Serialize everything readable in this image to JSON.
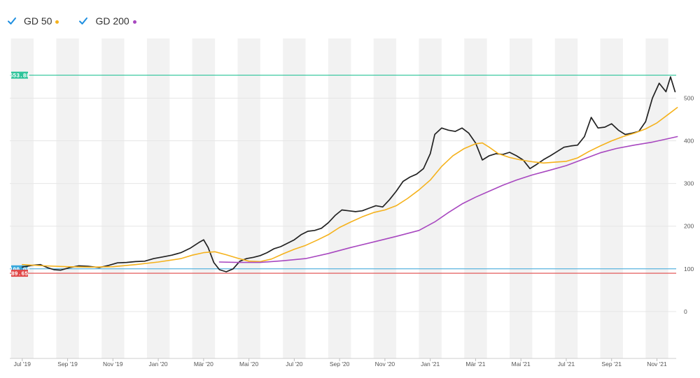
{
  "legend": [
    {
      "label": "GD 50",
      "color": "#f5b21c",
      "checked": true
    },
    {
      "label": "GD 200",
      "color": "#a848c0",
      "checked": true
    }
  ],
  "colors": {
    "price": "#222222",
    "gd50": "#f5b21c",
    "gd200": "#a848c0",
    "high_line": "#2ec49a",
    "mid_line": "#38a8dc",
    "low_line": "#e04848",
    "band": "#f2f2f2",
    "grid": "#e6e6e6"
  },
  "chart_data": {
    "type": "line",
    "x_unit": "month (Jul '19 = 0)",
    "xlim": [
      -0.55,
      28.85
    ],
    "ylim": [
      -110,
      640
    ],
    "y_ticks": [
      0,
      100,
      200,
      300,
      400,
      500
    ],
    "x_ticks": [
      {
        "x": 0,
        "label": "Jul '19"
      },
      {
        "x": 2,
        "label": "Sep '19"
      },
      {
        "x": 4,
        "label": "Nov '19"
      },
      {
        "x": 6,
        "label": "Jan '20"
      },
      {
        "x": 8,
        "label": "Mär '20"
      },
      {
        "x": 10,
        "label": "Mai '20"
      },
      {
        "x": 12,
        "label": "Jul '20"
      },
      {
        "x": 14,
        "label": "Sep '20"
      },
      {
        "x": 16,
        "label": "Nov '20"
      },
      {
        "x": 18,
        "label": "Jan '21"
      },
      {
        "x": 20,
        "label": "Mär '21"
      },
      {
        "x": 22,
        "label": "Mai '21"
      },
      {
        "x": 24,
        "label": "Jul '21"
      },
      {
        "x": 26,
        "label": "Sep '21"
      },
      {
        "x": 28,
        "label": "Nov '21"
      }
    ],
    "h_lines": [
      {
        "value": 553.88,
        "label": "553.88",
        "color": "#2ec49a"
      },
      {
        "value": 100.0,
        "label": "100.00",
        "color": "#38a8dc"
      },
      {
        "value": 89.65,
        "label": "89.65",
        "color": "#e04848"
      }
    ],
    "series": [
      {
        "color": "#222222",
        "points": [
          [
            0,
            104
          ],
          [
            0.4,
            108
          ],
          [
            0.8,
            110
          ],
          [
            1.1,
            103
          ],
          [
            1.4,
            98
          ],
          [
            1.7,
            97
          ],
          [
            2.1,
            103
          ],
          [
            2.5,
            107
          ],
          [
            2.9,
            106
          ],
          [
            3.4,
            103
          ],
          [
            3.8,
            108
          ],
          [
            4.2,
            114
          ],
          [
            4.6,
            115
          ],
          [
            5.0,
            117
          ],
          [
            5.4,
            118
          ],
          [
            5.8,
            124
          ],
          [
            6.2,
            128
          ],
          [
            6.6,
            132
          ],
          [
            7.0,
            138
          ],
          [
            7.4,
            148
          ],
          [
            7.8,
            162
          ],
          [
            8.0,
            168
          ],
          [
            8.2,
            150
          ],
          [
            8.45,
            115
          ],
          [
            8.7,
            98
          ],
          [
            9.0,
            93
          ],
          [
            9.3,
            100
          ],
          [
            9.6,
            118
          ],
          [
            9.9,
            124
          ],
          [
            10.2,
            127
          ],
          [
            10.5,
            131
          ],
          [
            10.8,
            138
          ],
          [
            11.1,
            147
          ],
          [
            11.4,
            152
          ],
          [
            11.7,
            160
          ],
          [
            12.0,
            168
          ],
          [
            12.3,
            180
          ],
          [
            12.6,
            188
          ],
          [
            12.9,
            190
          ],
          [
            13.2,
            195
          ],
          [
            13.5,
            208
          ],
          [
            13.8,
            225
          ],
          [
            14.1,
            238
          ],
          [
            14.4,
            236
          ],
          [
            14.7,
            234
          ],
          [
            15.0,
            236
          ],
          [
            15.3,
            242
          ],
          [
            15.6,
            248
          ],
          [
            15.9,
            245
          ],
          [
            16.2,
            262
          ],
          [
            16.5,
            282
          ],
          [
            16.8,
            305
          ],
          [
            17.1,
            315
          ],
          [
            17.4,
            322
          ],
          [
            17.7,
            335
          ],
          [
            18.0,
            370
          ],
          [
            18.2,
            415
          ],
          [
            18.5,
            430
          ],
          [
            18.8,
            425
          ],
          [
            19.1,
            422
          ],
          [
            19.4,
            430
          ],
          [
            19.7,
            418
          ],
          [
            20.0,
            395
          ],
          [
            20.3,
            355
          ],
          [
            20.6,
            365
          ],
          [
            20.9,
            370
          ],
          [
            21.2,
            368
          ],
          [
            21.5,
            373
          ],
          [
            21.8,
            365
          ],
          [
            22.1,
            355
          ],
          [
            22.4,
            335
          ],
          [
            22.7,
            345
          ],
          [
            23.0,
            356
          ],
          [
            23.3,
            365
          ],
          [
            23.6,
            375
          ],
          [
            23.9,
            385
          ],
          [
            24.2,
            388
          ],
          [
            24.5,
            390
          ],
          [
            24.8,
            410
          ],
          [
            25.1,
            455
          ],
          [
            25.4,
            430
          ],
          [
            25.7,
            432
          ],
          [
            26.0,
            440
          ],
          [
            26.3,
            425
          ],
          [
            26.6,
            415
          ],
          [
            26.9,
            418
          ],
          [
            27.2,
            422
          ],
          [
            27.5,
            445
          ],
          [
            27.8,
            500
          ],
          [
            28.1,
            535
          ],
          [
            28.4,
            515
          ],
          [
            28.6,
            550
          ],
          [
            28.8,
            515
          ]
        ]
      },
      {
        "color": "#f5b21c",
        "points": [
          [
            0,
            110
          ],
          [
            1,
            107
          ],
          [
            2,
            105
          ],
          [
            3,
            104
          ],
          [
            4,
            105
          ],
          [
            5,
            110
          ],
          [
            6,
            116
          ],
          [
            7,
            124
          ],
          [
            7.5,
            132
          ],
          [
            8.0,
            138
          ],
          [
            8.5,
            140
          ],
          [
            9.0,
            133
          ],
          [
            9.5,
            125
          ],
          [
            10.0,
            118
          ],
          [
            10.5,
            117
          ],
          [
            11.0,
            123
          ],
          [
            11.5,
            135
          ],
          [
            12.0,
            146
          ],
          [
            12.5,
            155
          ],
          [
            13.0,
            167
          ],
          [
            13.5,
            180
          ],
          [
            14.0,
            197
          ],
          [
            14.5,
            210
          ],
          [
            15.0,
            222
          ],
          [
            15.5,
            232
          ],
          [
            16.0,
            238
          ],
          [
            16.5,
            248
          ],
          [
            17.0,
            265
          ],
          [
            17.5,
            285
          ],
          [
            18.0,
            308
          ],
          [
            18.5,
            340
          ],
          [
            19.0,
            365
          ],
          [
            19.5,
            382
          ],
          [
            20.0,
            393
          ],
          [
            20.3,
            395
          ],
          [
            20.6,
            385
          ],
          [
            21.0,
            370
          ],
          [
            21.5,
            361
          ],
          [
            22.0,
            355
          ],
          [
            22.5,
            351
          ],
          [
            23.0,
            348
          ],
          [
            23.5,
            350
          ],
          [
            24.0,
            352
          ],
          [
            24.5,
            360
          ],
          [
            25.0,
            375
          ],
          [
            25.5,
            388
          ],
          [
            26.0,
            400
          ],
          [
            26.5,
            410
          ],
          [
            27.0,
            418
          ],
          [
            27.5,
            428
          ],
          [
            28.0,
            442
          ],
          [
            28.5,
            462
          ],
          [
            28.9,
            478
          ]
        ]
      },
      {
        "color": "#a848c0",
        "points": [
          [
            8.7,
            116
          ],
          [
            9.5,
            115
          ],
          [
            10.5,
            115
          ],
          [
            11.5,
            119
          ],
          [
            12.5,
            124
          ],
          [
            13.5,
            136
          ],
          [
            14.5,
            150
          ],
          [
            15.5,
            163
          ],
          [
            16.5,
            176
          ],
          [
            17.5,
            190
          ],
          [
            18.2,
            210
          ],
          [
            18.8,
            232
          ],
          [
            19.4,
            252
          ],
          [
            20.0,
            268
          ],
          [
            20.6,
            282
          ],
          [
            21.2,
            296
          ],
          [
            21.8,
            308
          ],
          [
            22.5,
            320
          ],
          [
            23.2,
            330
          ],
          [
            24.0,
            342
          ],
          [
            24.8,
            358
          ],
          [
            25.5,
            372
          ],
          [
            26.2,
            382
          ],
          [
            27.0,
            390
          ],
          [
            27.8,
            397
          ],
          [
            28.4,
            404
          ],
          [
            28.9,
            410
          ]
        ]
      }
    ]
  }
}
